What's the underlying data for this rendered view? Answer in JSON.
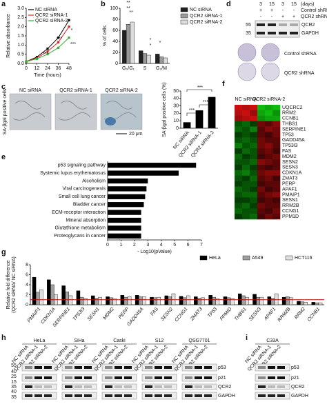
{
  "letters": [
    "a",
    "b",
    "c",
    "d",
    "e",
    "f",
    "g",
    "h",
    "i"
  ],
  "chart_data": [
    {
      "type": "line",
      "xlabel": "Time (hours)",
      "ylabel": "Relative absorbance",
      "x": [
        0,
        12,
        24,
        36,
        48
      ],
      "xlim": [
        0,
        48
      ],
      "xticks": [
        0,
        12,
        24,
        36,
        48
      ],
      "ylim": [
        0,
        3
      ],
      "yticks": [
        {
          "value": 0,
          "label": "0.0"
        },
        {
          "value": 0.5,
          "label": "0.5"
        },
        {
          "value": 1,
          "label": "1.0"
        },
        {
          "value": 1.5,
          "label": "1.5"
        },
        {
          "value": 2,
          "label": "2.0"
        },
        {
          "value": 2.5,
          "label": "2.5"
        },
        {
          "value": 3,
          "label": "3.0"
        }
      ],
      "series": [
        {
          "name": "NC siRNA",
          "color": "#000000",
          "values": [
            0.1,
            0.35,
            0.8,
            1.4,
            2.35
          ]
        },
        {
          "name": "QCR2 siRNA-1",
          "color": "#e02020",
          "values": [
            0.1,
            0.3,
            0.65,
            1.15,
            2.0
          ]
        },
        {
          "name": "QCR2 siRNA-2",
          "color": "#30b030",
          "values": [
            0.1,
            0.25,
            0.5,
            0.85,
            1.4
          ]
        }
      ],
      "annotations": [
        "*",
        "***",
        "***",
        "***"
      ]
    },
    {
      "type": "grouped_bar",
      "ylabel": "% of cells",
      "categories": [
        "G₀/G₁",
        "S",
        "G₂/M"
      ],
      "ylim": [
        0,
        100
      ],
      "yticks": [
        0,
        20,
        40,
        60,
        80,
        100
      ],
      "series": [
        {
          "name": "NC siRNA",
          "color": "#222222",
          "values": [
            60,
            23,
            17
          ]
        },
        {
          "name": "QCR2 siRNA-1",
          "color": "#9a9a9a",
          "values": [
            71,
            18,
            12
          ]
        },
        {
          "name": "QCR2 siRNA-2",
          "color": "#dcdcdc",
          "values": [
            75,
            15,
            10
          ]
        }
      ],
      "annotations": [
        "**",
        "**",
        "**",
        "*",
        "*",
        "*"
      ]
    },
    {
      "type": "bar",
      "ylabel": "SA-βgal positive cells (%)",
      "categories": [
        "NC siRNA",
        "QCR2 siRNA-1",
        "QCR2 siRNA-2"
      ],
      "values": [
        8,
        24,
        42
      ],
      "color": "#000000",
      "ylim": [
        0,
        50
      ],
      "yticks": [
        0,
        10,
        20,
        30,
        40,
        50
      ],
      "annotations": [
        "***",
        "***",
        "***"
      ]
    },
    {
      "type": "hbar",
      "xlabel": "- Log10(pValue)",
      "categories": [
        "p53 signaling pathway",
        "Systemic lupus erythematosus",
        "Alcoholism",
        "Viral carcinogenesis",
        "Small cell lung cancer",
        "Bladder cancer",
        "ECM-receptor interaction",
        "Mineral absorption",
        "Glutathione metabolism",
        "Proteoglycans in cancer"
      ],
      "values": [
        6.6,
        5.3,
        3.0,
        2.9,
        2.8,
        2.7,
        2.5,
        2.5,
        2.5,
        2.5
      ],
      "color": "#000000",
      "xlim": [
        0,
        7
      ],
      "xticks": [
        0,
        1,
        2,
        3,
        4,
        5,
        6,
        7
      ]
    },
    {
      "type": "heatmap",
      "groups": [
        "NC siRNA",
        "QCR2 siRNA-2"
      ],
      "rows": [
        "UQCRC2",
        "RRM2",
        "CCNB1",
        "THBS1",
        "SERPINE1",
        "TP53",
        "GADD45A",
        "TP53I3",
        "FAS",
        "MDM2",
        "SESN2",
        "SESN3",
        "CDKN1A",
        "ZMAT3",
        "PERP",
        "APAF1",
        "PMAIP1",
        "SESN1",
        "RRM2B",
        "CCNG1",
        "PPM1D"
      ],
      "zlim": [
        -1,
        1
      ],
      "colors": [
        "#10d010",
        "#000000",
        "#e01010"
      ],
      "values": [
        [
          0.9,
          0.8,
          0.9,
          -0.9,
          -0.8,
          -0.9
        ],
        [
          0.8,
          0.9,
          0.7,
          -0.8,
          -0.9,
          -0.7
        ],
        [
          0.7,
          0.8,
          0.9,
          -0.7,
          -0.8,
          -0.8
        ],
        [
          -0.4,
          -0.5,
          -0.3,
          0.5,
          0.4,
          0.6
        ],
        [
          -0.5,
          -0.4,
          -0.6,
          0.4,
          0.6,
          0.5
        ],
        [
          -0.3,
          -0.4,
          -0.3,
          0.4,
          0.3,
          0.5
        ],
        [
          -0.4,
          -0.5,
          -0.4,
          0.5,
          0.4,
          0.4
        ],
        [
          -0.6,
          -0.4,
          -0.5,
          0.5,
          0.6,
          0.4
        ],
        [
          -0.3,
          -0.5,
          -0.4,
          0.4,
          0.5,
          0.3
        ],
        [
          -0.5,
          -0.3,
          -0.4,
          0.3,
          0.4,
          0.5
        ],
        [
          -0.4,
          -0.4,
          -0.5,
          0.6,
          0.5,
          0.4
        ],
        [
          -0.3,
          -0.5,
          -0.3,
          0.4,
          0.3,
          0.4
        ],
        [
          -0.5,
          -0.6,
          -0.4,
          0.5,
          0.6,
          0.6
        ],
        [
          -0.4,
          -0.3,
          -0.5,
          0.4,
          0.5,
          0.3
        ],
        [
          -0.3,
          -0.4,
          -0.4,
          0.3,
          0.4,
          0.4
        ],
        [
          -0.5,
          -0.4,
          -0.3,
          0.5,
          0.3,
          0.4
        ],
        [
          -0.4,
          -0.5,
          -0.5,
          0.4,
          0.5,
          0.6
        ],
        [
          -0.3,
          -0.3,
          -0.4,
          0.3,
          0.4,
          0.3
        ],
        [
          -0.4,
          -0.5,
          -0.3,
          0.5,
          0.4,
          0.4
        ],
        [
          -0.5,
          -0.4,
          -0.4,
          0.4,
          0.3,
          0.5
        ],
        [
          -0.3,
          -0.4,
          -0.5,
          0.3,
          0.5,
          0.4
        ]
      ]
    },
    {
      "type": "grouped_bar",
      "ylabel": [
        "Relative fold difference",
        "(QCR2 siRNA/ NC siRNA)"
      ],
      "categories": [
        "PMAIP1",
        "CDKN1A",
        "SERPINE1",
        "TP53I3",
        "SESN1",
        "MDM2",
        "PERP",
        "GADD45A",
        "FAS",
        "SESN2",
        "CCNG1",
        "ZMAT3",
        "TP53",
        "PPMID",
        "THBS1",
        "SESN3",
        "APAF1",
        "RRM2B",
        "RRM2",
        "CCNB1"
      ],
      "category_colors": [
        "#b22222",
        "#b22222",
        "#b22222",
        "#b22222",
        "#b22222",
        "#b22222",
        "#b22222",
        "#b22222",
        "#b22222",
        "#b22222",
        "#b22222",
        "#b22222",
        "#b22222",
        "#b22222",
        "#b22222",
        "#b22222",
        "#b22222",
        "#b22222",
        "#b22222",
        "#2e8b2e"
      ],
      "ylim": [
        0,
        8
      ],
      "yticks": [
        0,
        2,
        4,
        6,
        8
      ],
      "refline": 1,
      "refline_color": "#c00000",
      "series": [
        {
          "name": "HeLa",
          "color": "#000000",
          "values": [
            5.5,
            5.0,
            3.8,
            2.8,
            1.8,
            1.6,
            1.9,
            1.9,
            1.5,
            1.8,
            1.7,
            1.6,
            1.9,
            1.6,
            2.2,
            2.1,
            1.6,
            1.5,
            0.7,
            0.5
          ]
        },
        {
          "name": "A549",
          "color": "#a0a0a0",
          "values": [
            2.5,
            4.0,
            2.6,
            1.5,
            1.3,
            1.4,
            1.5,
            1.6,
            1.4,
            1.6,
            1.4,
            1.3,
            1.5,
            1.4,
            1.8,
            1.5,
            1.3,
            1.6,
            0.6,
            0.4
          ]
        },
        {
          "name": "HCT116",
          "color": "#e0e0e0",
          "values": [
            3.0,
            2.0,
            1.8,
            1.3,
            1.5,
            1.2,
            1.6,
            1.6,
            1.5,
            2.2,
            1.8,
            1.4,
            1.2,
            1.3,
            1.5,
            1.5,
            2.2,
            1.4,
            0.5,
            0.4
          ]
        }
      ]
    }
  ],
  "blot_d": {
    "days": [
      "3",
      "15",
      "3",
      "15"
    ],
    "days_unit": "(days)",
    "rows": [
      {
        "label": "Control shRNA",
        "signs": [
          "+",
          "+",
          "-",
          "-"
        ]
      },
      {
        "label": "QCR2 shRNA",
        "signs": [
          "-",
          "-",
          "+",
          "+"
        ]
      }
    ],
    "markers": [
      "55",
      "35"
    ],
    "proteins": [
      "QCR2",
      "GAPDH"
    ],
    "colony_labels": [
      "Control shRNA",
      "QCR2 shRNA"
    ]
  },
  "images_c": {
    "labels": [
      "NC siRNA",
      "QCR2 siRNA-1",
      "QCR2 siRNA-2"
    ],
    "side": "SA-βgal positive cells",
    "scale": "20 μm"
  },
  "blot_h": {
    "cells": [
      "HeLa",
      "SiHa",
      "Caski",
      "S12",
      "QSG7701"
    ],
    "lanes": [
      "NC siRNA",
      "QCR2 siRNA-1",
      "QCR2 siRNA-2"
    ],
    "markers": [
      "55",
      "40",
      "25",
      "15",
      "35",
      "40",
      "35"
    ],
    "proteins": [
      "p53",
      "p21",
      "QCR2",
      "GAPDH"
    ]
  },
  "blot_i": {
    "cells": [
      "C33A"
    ],
    "lanes": [
      "NC siRNA",
      "QCR2 siRNA-1",
      "QCR2 siRNA-2"
    ],
    "proteins": [
      "p53",
      "p21",
      "QCR2",
      "GAPDH"
    ]
  }
}
